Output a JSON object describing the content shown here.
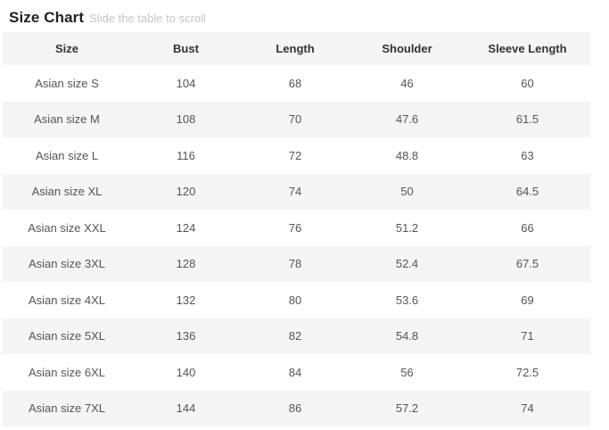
{
  "header": {
    "title": "Size Chart",
    "subtitle": "Slide the table to scroll"
  },
  "table": {
    "columns": [
      "Size",
      "Bust",
      "Length",
      "Shoulder",
      "Sleeve Length"
    ],
    "rows": [
      [
        "Asian size S",
        "104",
        "68",
        "46",
        "60"
      ],
      [
        "Asian size M",
        "108",
        "70",
        "47.6",
        "61.5"
      ],
      [
        "Asian size L",
        "116",
        "72",
        "48.8",
        "63"
      ],
      [
        "Asian size XL",
        "120",
        "74",
        "50",
        "64.5"
      ],
      [
        "Asian size XXL",
        "124",
        "76",
        "51.2",
        "66"
      ],
      [
        "Asian size 3XL",
        "128",
        "78",
        "52.4",
        "67.5"
      ],
      [
        "Asian size 4XL",
        "132",
        "80",
        "53.6",
        "69"
      ],
      [
        "Asian size 5XL",
        "136",
        "82",
        "54.8",
        "71"
      ],
      [
        "Asian size 6XL",
        "140",
        "84",
        "56",
        "72.5"
      ],
      [
        "Asian size 7XL",
        "144",
        "86",
        "57.2",
        "74"
      ]
    ]
  },
  "colors": {
    "title_text": "#222222",
    "subtitle_text": "#c5c5c5",
    "header_text": "#333333",
    "cell_text": "#555555",
    "stripe_bg": "#f5f5f5",
    "row_bg": "#ffffff"
  }
}
